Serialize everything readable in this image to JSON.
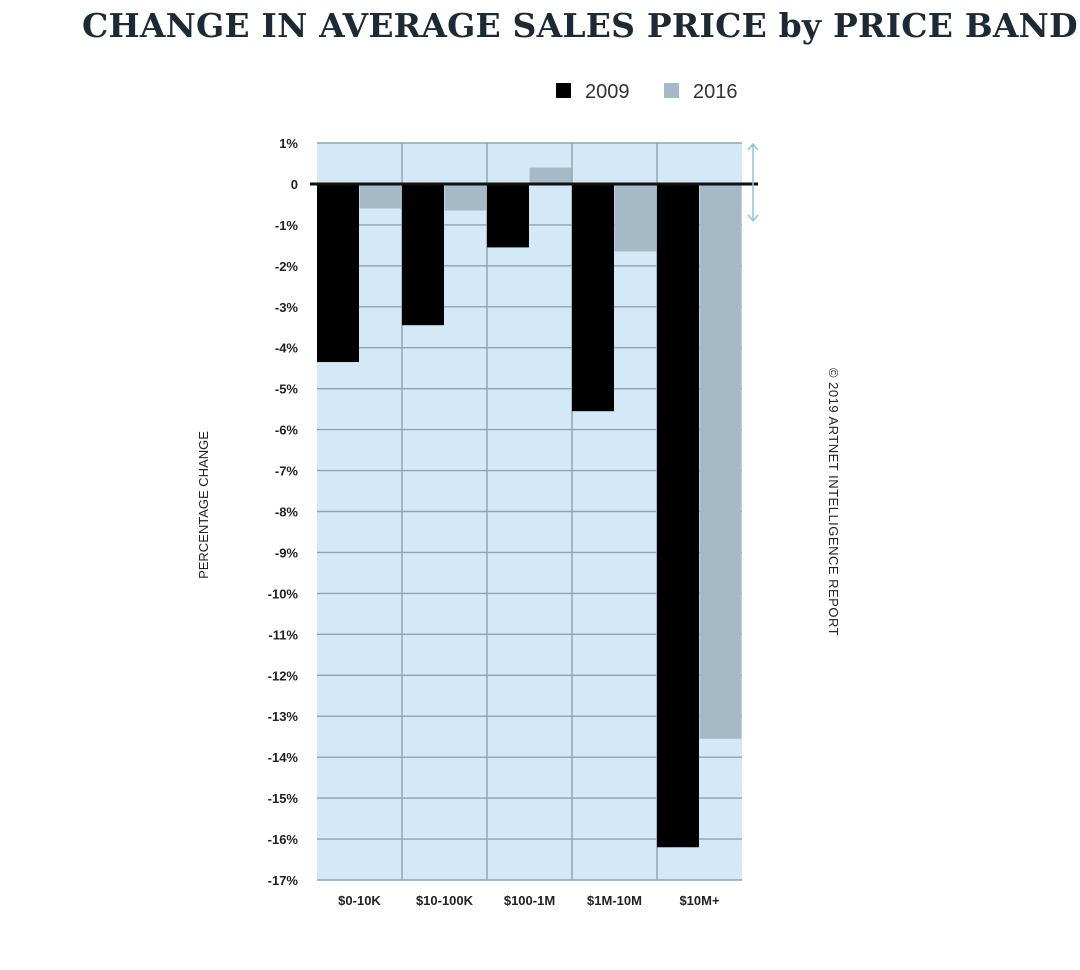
{
  "chart_data": {
    "type": "bar",
    "title": "CHANGE IN AVERAGE SALES PRICE by PRICE BAND",
    "ylabel": "PERCENTAGE CHANGE",
    "categories": [
      "$0-10K",
      "$10-100K",
      "$100-1M",
      "$1M-10M",
      "$10M+"
    ],
    "series": [
      {
        "name": "2009",
        "color": "#000000",
        "values": [
          -4.35,
          -3.45,
          -1.55,
          -5.55,
          -16.2
        ]
      },
      {
        "name": "2016",
        "color": "#a5bac6",
        "values": [
          -0.6,
          -0.65,
          0.4,
          -1.65,
          -13.55
        ]
      }
    ],
    "ylim": [
      -17,
      1
    ],
    "yticks": [
      "1%",
      "0",
      "-1%",
      "-2%",
      "-3%",
      "-4%",
      "-5%",
      "-6%",
      "-7%",
      "-8%",
      "-9%",
      "-10%",
      "-11%",
      "-12%",
      "-13%",
      "-14%",
      "-15%",
      "-16%",
      "-17%"
    ],
    "grid": true,
    "plot_background": "#d3e9f7",
    "grid_color": "#8fa3af",
    "legend_position": "top-right",
    "credit": "© 2019 ARTNET INTELLIGENCE REPORT"
  }
}
